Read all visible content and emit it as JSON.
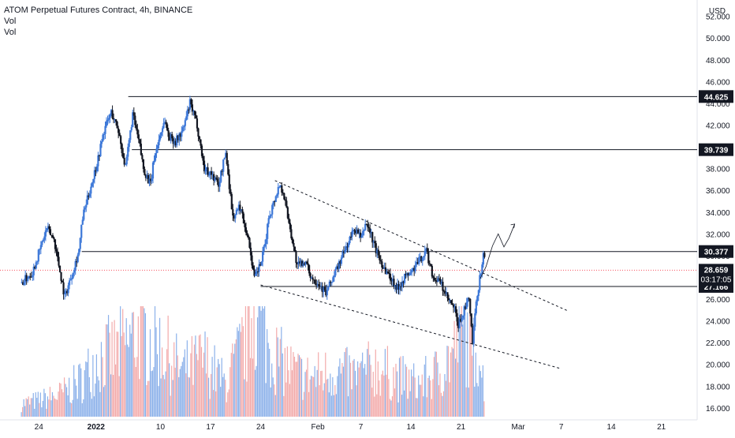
{
  "header": {
    "title": "ATOM Perpetual Futures Contract, 4h, BINANCE",
    "indicator_1": "Vol",
    "indicator_2": "Vol"
  },
  "chart_data": {
    "type": "candlestick",
    "currency": "USD",
    "ylim": [
      14.9,
      53.5
    ],
    "yticks": [
      16,
      18,
      20,
      22,
      24,
      26,
      28,
      30,
      32,
      34,
      36,
      38,
      40,
      42,
      44,
      46,
      48,
      50,
      52
    ],
    "ytick_labels": [
      "16.000",
      "18.000",
      "20.000",
      "22.000",
      "24.000",
      "26.000",
      "28.000",
      "30.000",
      "32.000",
      "34.000",
      "36.000",
      "38.000",
      "40.000",
      "42.000",
      "44.000",
      "46.000",
      "48.000",
      "50.000",
      "52.000"
    ],
    "x_labels": [
      "24",
      "2022",
      "10",
      "17",
      "24",
      "Feb",
      "7",
      "14",
      "21",
      "Mar",
      "7",
      "14",
      "21"
    ],
    "x_label_days": [
      -8,
      0,
      9,
      16,
      23,
      31,
      37,
      44,
      51,
      59,
      65,
      72,
      79
    ],
    "horizontal_levels": [
      {
        "value": 44.625,
        "label": "44.625",
        "start_day": 4.5
      },
      {
        "value": 39.739,
        "label": "39.739",
        "start_day": 5.0
      },
      {
        "value": 30.377,
        "label": "30.377",
        "start_day": -2.0
      },
      {
        "value": 27.166,
        "label": "27.166",
        "start_day": 23.0
      }
    ],
    "current_price": {
      "value": 28.659,
      "label": "28.659",
      "countdown": "03:17:05"
    },
    "trendlines": [
      {
        "points": [
          [
            25,
            36.9
          ],
          [
            66,
            24.9
          ]
        ]
      },
      {
        "points": [
          [
            23,
            27.3
          ],
          [
            65,
            19.6
          ]
        ]
      }
    ],
    "projection": {
      "points": [
        [
          53.7,
          27.9
        ],
        [
          54.5,
          29.0
        ],
        [
          55.4,
          30.9
        ],
        [
          56.2,
          32.0
        ],
        [
          57.0,
          30.8
        ],
        [
          57.7,
          31.6
        ],
        [
          58.5,
          32.9
        ]
      ]
    },
    "price_path": {
      "days": [
        -10.5,
        -9,
        -8,
        -7,
        -6,
        -5,
        -4.5,
        -3.5,
        -2.5,
        -2,
        -1,
        0,
        1,
        2,
        3,
        4,
        5,
        6,
        6.5,
        7.5,
        8,
        9,
        9.5,
        10,
        11,
        12,
        13,
        14,
        15,
        16,
        17,
        18,
        19,
        20,
        21,
        21.5,
        22,
        23,
        23.5,
        24,
        25,
        25.5,
        26,
        27,
        28,
        29,
        30,
        31,
        32,
        33,
        34,
        35,
        36,
        37,
        37.5,
        38,
        39,
        40,
        41,
        42,
        43,
        44,
        45,
        46,
        47,
        48,
        49,
        50,
        50.5,
        51,
        52,
        52.5,
        53,
        53.5,
        54
      ],
      "close": [
        27.5,
        28.5,
        30.5,
        32.5,
        31.5,
        28.0,
        26.2,
        28.3,
        30.5,
        33.5,
        36.0,
        38.5,
        41.5,
        43.2,
        41.5,
        38.0,
        43.0,
        40.0,
        38.0,
        36.5,
        39.0,
        41.5,
        42.5,
        41.0,
        40.5,
        41.5,
        44.0,
        42.0,
        38.0,
        37.5,
        36.5,
        39.5,
        33.5,
        34.5,
        32.0,
        30.2,
        27.8,
        29.5,
        31.0,
        33.5,
        35.5,
        36.5,
        36.0,
        32.5,
        29.0,
        29.5,
        28.0,
        27.5,
        26.5,
        28.0,
        29.5,
        31.0,
        32.5,
        31.5,
        33.0,
        32.5,
        30.5,
        29.0,
        28.0,
        27.0,
        28.0,
        28.5,
        29.5,
        30.5,
        28.0,
        27.5,
        26.0,
        25.0,
        23.5,
        24.5,
        26.0,
        22.0,
        25.5,
        28.0,
        30.0
      ]
    },
    "volume": {
      "days": [
        -11,
        -8,
        -5,
        -2,
        0,
        3,
        6,
        9,
        12,
        15,
        18,
        21,
        22,
        24,
        26,
        28,
        30,
        33,
        36,
        39,
        42,
        45,
        48,
        50,
        51,
        52,
        52.5,
        53,
        53.5,
        54
      ],
      "values": [
        0.6,
        0.8,
        1.1,
        1.8,
        2.8,
        3.2,
        4.1,
        3.4,
        2.2,
        2.8,
        1.6,
        3.8,
        5.6,
        3.4,
        2.6,
        2.1,
        1.9,
        2.2,
        2.0,
        2.4,
        1.9,
        1.6,
        2.2,
        3.2,
        4.8,
        3.6,
        2.8,
        3.8,
        3.0,
        1.8
      ]
    }
  }
}
